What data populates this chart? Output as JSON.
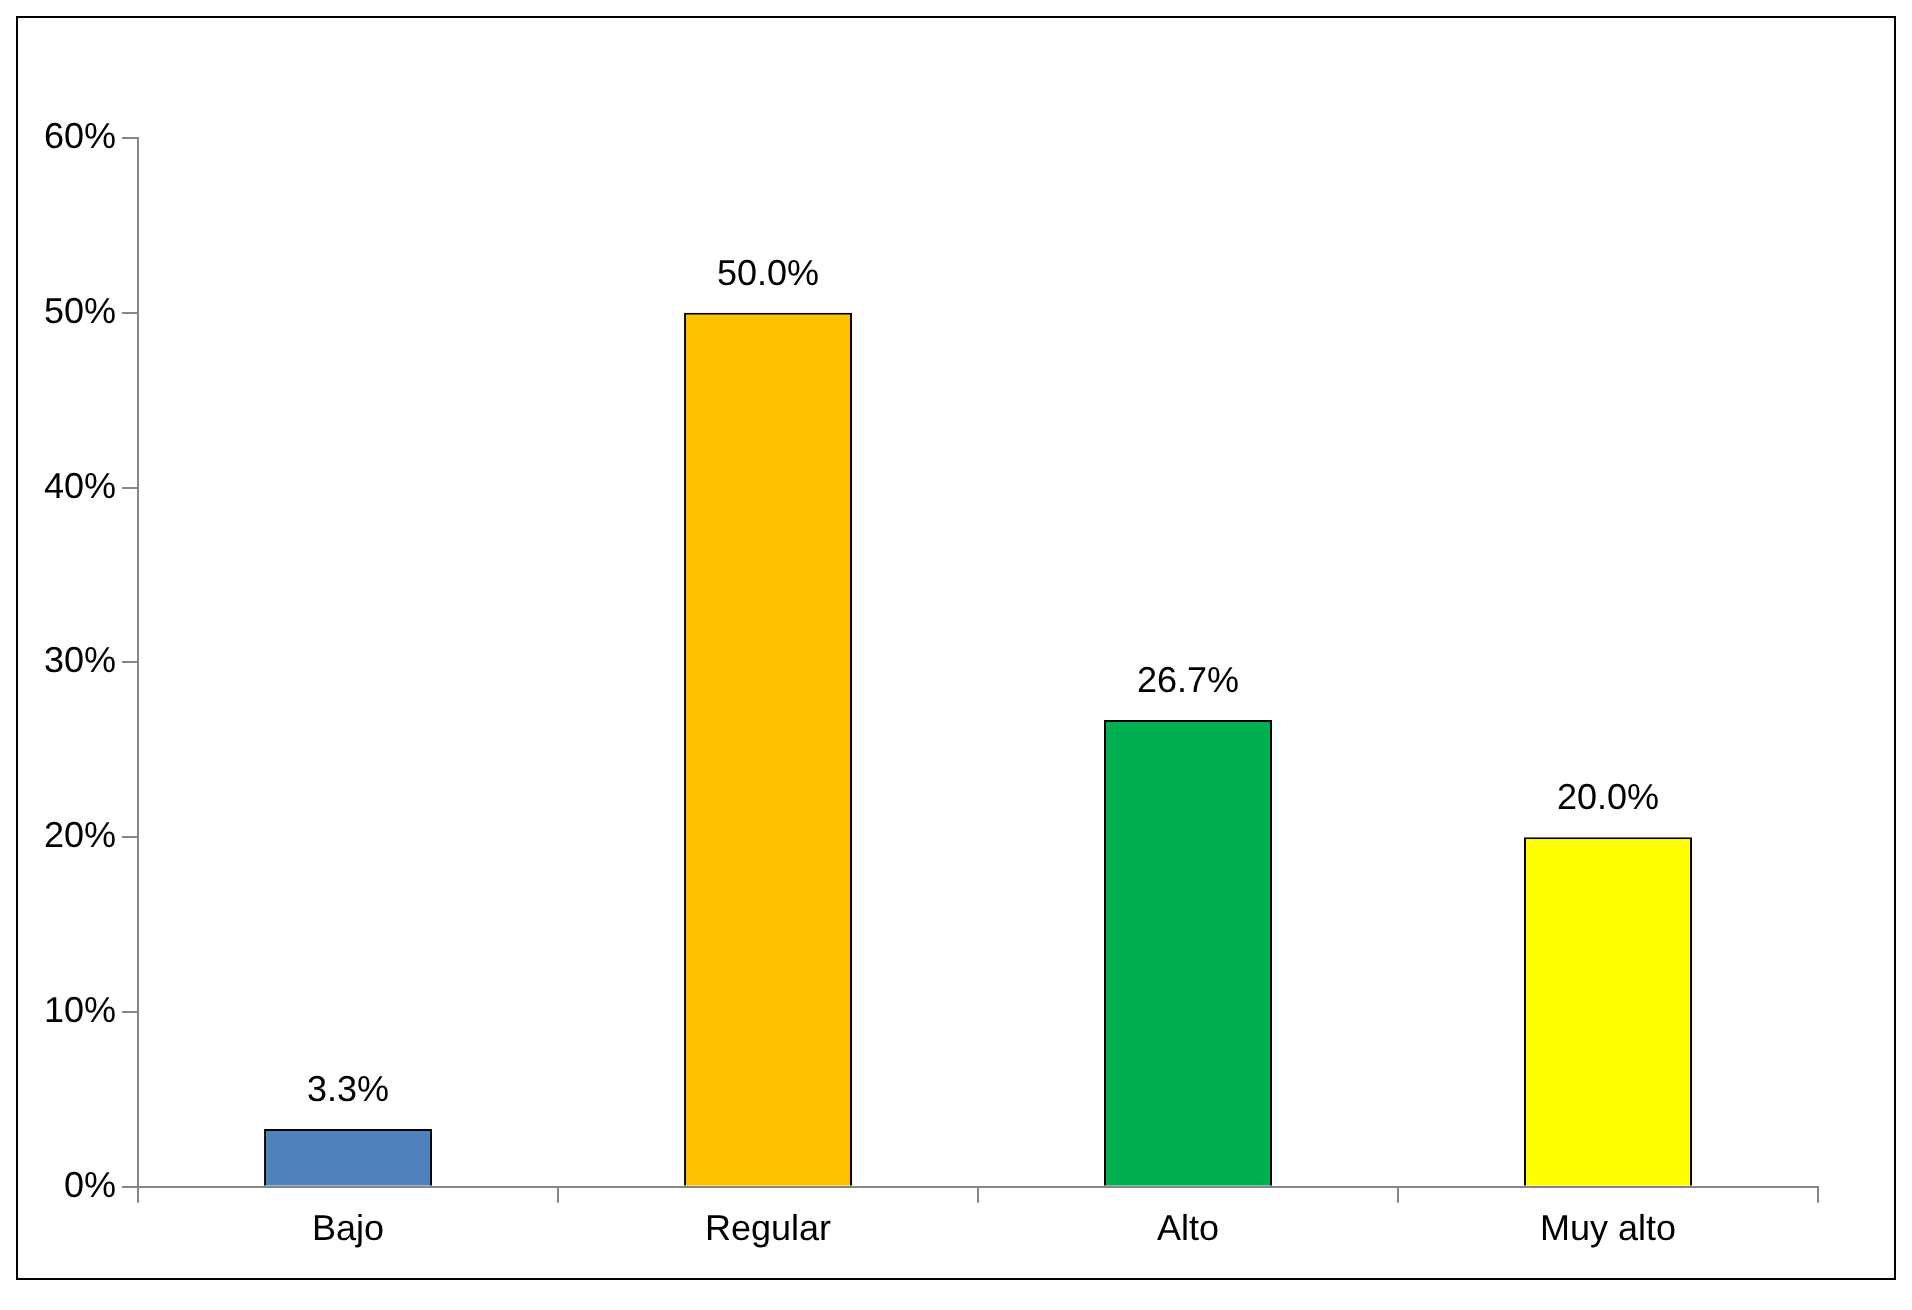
{
  "chart_data": {
    "type": "bar",
    "categories": [
      "Bajo",
      "Regular",
      "Alto",
      "Muy alto"
    ],
    "values": [
      3.3,
      50.0,
      26.7,
      20.0
    ],
    "colors": [
      "#4f81bd",
      "#ffc000",
      "#00b050",
      "#ffff00"
    ],
    "value_labels": [
      "3.3%",
      "50.0%",
      "26.7%",
      "20.0%"
    ],
    "ylim": [
      0,
      60
    ],
    "yticks": [
      {
        "value": 0,
        "label": "0%"
      },
      {
        "value": 10,
        "label": "10%"
      },
      {
        "value": 20,
        "label": "20%"
      },
      {
        "value": 30,
        "label": "30%"
      },
      {
        "value": 40,
        "label": "40%"
      },
      {
        "value": 50,
        "label": "50%"
      },
      {
        "value": 60,
        "label": "60%"
      }
    ],
    "grid": false,
    "legend": false
  }
}
